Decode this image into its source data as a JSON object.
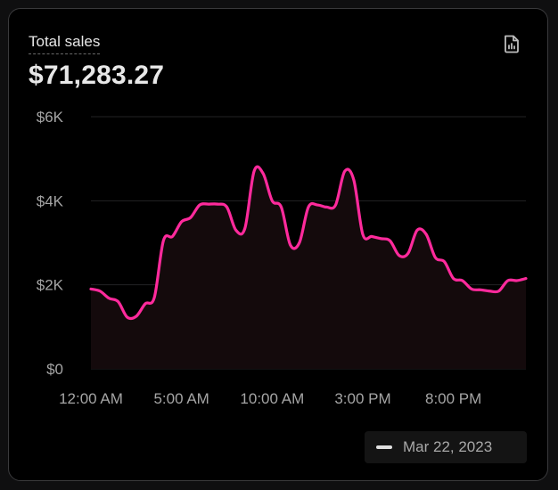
{
  "card": {
    "title": "Total sales",
    "total": "$71,283.27",
    "export_icon": "document-chart-icon"
  },
  "chart_data": {
    "type": "area",
    "title": "Total sales",
    "xlabel": "",
    "ylabel": "",
    "ylim": [
      0,
      6000
    ],
    "y_ticks": [
      0,
      2000,
      4000,
      6000
    ],
    "y_tick_labels": [
      "$0",
      "$2K",
      "$4K",
      "$6K"
    ],
    "x_ticks": [
      0,
      5,
      10,
      15,
      20
    ],
    "x_tick_labels": [
      "12:00 AM",
      "5:00 AM",
      "10:00 AM",
      "3:00 PM",
      "8:00 PM"
    ],
    "grid": true,
    "legend": "bottom-right",
    "line_color": "#ff2a9c",
    "x": [
      0,
      0.5,
      1,
      1.5,
      2,
      2.5,
      3,
      3.5,
      4,
      4.5,
      5,
      5.5,
      6,
      6.5,
      7,
      7.5,
      8,
      8.5,
      9,
      9.5,
      10,
      10.5,
      11,
      11.5,
      12,
      12.5,
      13,
      13.5,
      14,
      14.5,
      15,
      15.5,
      16,
      16.5,
      17,
      17.5,
      18,
      18.5,
      19,
      19.5,
      20,
      20.5,
      21,
      21.5,
      22,
      22.5,
      23,
      23.5,
      24
    ],
    "series": [
      {
        "name": "Mar 22, 2023",
        "values": [
          1900,
          1850,
          1680,
          1600,
          1230,
          1250,
          1550,
          1700,
          3050,
          3150,
          3500,
          3600,
          3900,
          3920,
          3920,
          3850,
          3300,
          3350,
          4700,
          4650,
          4000,
          3850,
          2950,
          3000,
          3850,
          3900,
          3850,
          3900,
          4700,
          4500,
          3200,
          3150,
          3100,
          3050,
          2700,
          2750,
          3300,
          3200,
          2650,
          2550,
          2150,
          2100,
          1900,
          1880,
          1850,
          1850,
          2100,
          2100,
          2150
        ]
      }
    ]
  },
  "legend": {
    "label": "Mar 22, 2023",
    "swatch_color": "#e0e0e0"
  }
}
